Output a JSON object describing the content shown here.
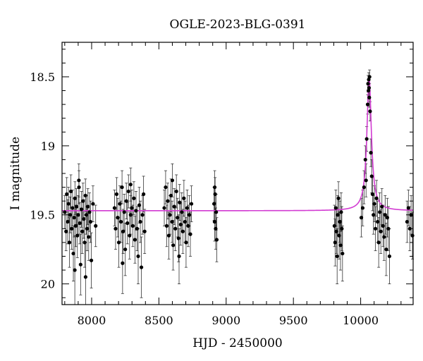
{
  "chart_data": {
    "type": "scatter",
    "title": "OGLE-2023-BLG-0391",
    "xlabel": "HJD - 2450000",
    "ylabel": "I magnitude",
    "xlim": [
      7780,
      10390
    ],
    "ylim": [
      20.15,
      18.25
    ],
    "y_inverted": true,
    "x_ticks": [
      8000,
      8500,
      9000,
      9500,
      10000
    ],
    "y_ticks": [
      18.5,
      19,
      19.5,
      20
    ],
    "grid": false,
    "model_color": "#d23bd2",
    "point_color": "#000000",
    "model": {
      "baseline_mag": 19.47,
      "peak_time": 10063,
      "peak_mag": 18.5,
      "width_days": 16
    },
    "series": [
      {
        "points": [
          [
            7800,
            19.48,
            0.12
          ],
          [
            7810,
            19.62,
            0.14
          ],
          [
            7815,
            19.35,
            0.12
          ],
          [
            7822,
            19.55,
            0.16
          ],
          [
            7828,
            19.42,
            0.12
          ],
          [
            7835,
            19.7,
            0.18
          ],
          [
            7840,
            19.5,
            0.13
          ],
          [
            7846,
            19.33,
            0.12
          ],
          [
            7852,
            19.6,
            0.15
          ],
          [
            7858,
            19.45,
            0.13
          ],
          [
            7864,
            19.78,
            0.2
          ],
          [
            7870,
            19.52,
            0.14
          ],
          [
            7876,
            19.38,
            0.12
          ],
          [
            7882,
            19.58,
            0.15
          ],
          [
            7888,
            19.44,
            0.13
          ],
          [
            7894,
            19.65,
            0.16
          ],
          [
            7900,
            19.5,
            0.14
          ],
          [
            7906,
            19.3,
            0.12
          ],
          [
            7912,
            19.56,
            0.15
          ],
          [
            7918,
            19.86,
            0.22
          ],
          [
            7924,
            19.46,
            0.13
          ],
          [
            7930,
            19.62,
            0.16
          ],
          [
            7936,
            19.4,
            0.13
          ],
          [
            7942,
            19.53,
            0.14
          ],
          [
            7948,
            19.7,
            0.18
          ],
          [
            7954,
            19.36,
            0.12
          ],
          [
            7960,
            19.5,
            0.14
          ],
          [
            7966,
            19.6,
            0.16
          ],
          [
            7972,
            19.44,
            0.13
          ],
          [
            7978,
            19.66,
            0.17
          ],
          [
            7984,
            19.48,
            0.14
          ],
          [
            7992,
            19.55,
            0.15
          ],
          [
            7998,
            19.83,
            0.2
          ],
          [
            8010,
            19.42,
            0.13
          ],
          [
            8030,
            19.58,
            0.15
          ],
          [
            7875,
            19.9,
            0.25
          ],
          [
            7905,
            19.25,
            0.12
          ],
          [
            7955,
            19.95,
            0.25
          ],
          [
            8170,
            19.45,
            0.13
          ],
          [
            8178,
            19.6,
            0.15
          ],
          [
            8186,
            19.35,
            0.12
          ],
          [
            8194,
            19.52,
            0.14
          ],
          [
            8202,
            19.7,
            0.18
          ],
          [
            8210,
            19.42,
            0.13
          ],
          [
            8218,
            19.55,
            0.15
          ],
          [
            8226,
            19.3,
            0.12
          ],
          [
            8234,
            19.62,
            0.16
          ],
          [
            8242,
            19.48,
            0.13
          ],
          [
            8250,
            19.75,
            0.19
          ],
          [
            8258,
            19.4,
            0.13
          ],
          [
            8266,
            19.56,
            0.15
          ],
          [
            8274,
            19.33,
            0.12
          ],
          [
            8282,
            19.65,
            0.17
          ],
          [
            8290,
            19.5,
            0.14
          ],
          [
            8298,
            19.45,
            0.13
          ],
          [
            8306,
            19.58,
            0.15
          ],
          [
            8314,
            19.38,
            0.12
          ],
          [
            8322,
            19.68,
            0.17
          ],
          [
            8330,
            19.47,
            0.14
          ],
          [
            8338,
            19.6,
            0.16
          ],
          [
            8346,
            19.8,
            0.2
          ],
          [
            8354,
            19.43,
            0.13
          ],
          [
            8362,
            19.55,
            0.15
          ],
          [
            8370,
            19.88,
            0.22
          ],
          [
            8378,
            19.5,
            0.14
          ],
          [
            8386,
            19.35,
            0.13
          ],
          [
            8394,
            19.62,
            0.16
          ],
          [
            8290,
            19.28,
            0.12
          ],
          [
            8230,
            19.85,
            0.22
          ],
          [
            8540,
            19.45,
            0.13
          ],
          [
            8550,
            19.3,
            0.12
          ],
          [
            8558,
            19.58,
            0.15
          ],
          [
            8566,
            19.4,
            0.13
          ],
          [
            8574,
            19.65,
            0.17
          ],
          [
            8582,
            19.5,
            0.14
          ],
          [
            8590,
            19.36,
            0.12
          ],
          [
            8598,
            19.55,
            0.15
          ],
          [
            8606,
            19.72,
            0.18
          ],
          [
            8614,
            19.44,
            0.13
          ],
          [
            8622,
            19.6,
            0.16
          ],
          [
            8630,
            19.33,
            0.12
          ],
          [
            8638,
            19.52,
            0.14
          ],
          [
            8646,
            19.67,
            0.17
          ],
          [
            8654,
            19.41,
            0.13
          ],
          [
            8662,
            19.57,
            0.15
          ],
          [
            8670,
            19.48,
            0.14
          ],
          [
            8678,
            19.62,
            0.16
          ],
          [
            8686,
            19.38,
            0.13
          ],
          [
            8694,
            19.55,
            0.15
          ],
          [
            8702,
            19.7,
            0.18
          ],
          [
            8710,
            19.45,
            0.13
          ],
          [
            8718,
            19.58,
            0.15
          ],
          [
            8726,
            19.5,
            0.14
          ],
          [
            8734,
            19.64,
            0.16
          ],
          [
            8742,
            19.42,
            0.13
          ],
          [
            8600,
            19.25,
            0.12
          ],
          [
            8650,
            19.8,
            0.2
          ],
          [
            8910,
            19.42,
            0.12
          ],
          [
            8914,
            19.55,
            0.14
          ],
          [
            8918,
            19.35,
            0.12
          ],
          [
            8922,
            19.6,
            0.15
          ],
          [
            8926,
            19.48,
            0.13
          ],
          [
            8930,
            19.68,
            0.16
          ],
          [
            8915,
            19.3,
            0.12
          ],
          [
            9805,
            19.58,
            0.15
          ],
          [
            9810,
            19.7,
            0.17
          ],
          [
            9815,
            19.45,
            0.13
          ],
          [
            9820,
            19.62,
            0.16
          ],
          [
            9825,
            19.8,
            0.2
          ],
          [
            9830,
            19.5,
            0.14
          ],
          [
            9835,
            19.38,
            0.12
          ],
          [
            9840,
            19.65,
            0.17
          ],
          [
            9845,
            19.55,
            0.15
          ],
          [
            9850,
            19.72,
            0.18
          ],
          [
            9855,
            19.48,
            0.14
          ],
          [
            9860,
            19.6,
            0.16
          ],
          [
            9865,
            19.78,
            0.2
          ],
          [
            10005,
            19.52,
            0.14
          ],
          [
            10015,
            19.45,
            0.13
          ],
          [
            10025,
            19.3,
            0.12
          ],
          [
            10035,
            19.1,
            0.1
          ],
          [
            10040,
            19.25,
            0.12
          ],
          [
            10045,
            18.95,
            0.09
          ],
          [
            10052,
            18.7,
            0.07
          ],
          [
            10055,
            18.55,
            0.06
          ],
          [
            10058,
            18.6,
            0.06
          ],
          [
            10060,
            18.52,
            0.05
          ],
          [
            10062,
            18.58,
            0.06
          ],
          [
            10064,
            18.65,
            0.07
          ],
          [
            10066,
            18.5,
            0.05
          ],
          [
            10070,
            18.75,
            0.07
          ],
          [
            10076,
            19.05,
            0.1
          ],
          [
            10082,
            19.22,
            0.12
          ],
          [
            10088,
            19.35,
            0.12
          ],
          [
            10095,
            19.5,
            0.14
          ],
          [
            10102,
            19.42,
            0.13
          ],
          [
            10110,
            19.6,
            0.16
          ],
          [
            10118,
            19.38,
            0.13
          ],
          [
            10126,
            19.55,
            0.15
          ],
          [
            10134,
            19.7,
            0.18
          ],
          [
            10142,
            19.48,
            0.14
          ],
          [
            10150,
            19.62,
            0.16
          ],
          [
            10158,
            19.44,
            0.13
          ],
          [
            10166,
            19.58,
            0.15
          ],
          [
            10174,
            19.66,
            0.17
          ],
          [
            10182,
            19.5,
            0.14
          ],
          [
            10190,
            19.75,
            0.19
          ],
          [
            10198,
            19.52,
            0.14
          ],
          [
            10206,
            19.6,
            0.16
          ],
          [
            10214,
            19.8,
            0.2
          ],
          [
            10345,
            19.55,
            0.15
          ],
          [
            10355,
            19.45,
            0.13
          ],
          [
            10365,
            19.6,
            0.16
          ],
          [
            10375,
            19.5,
            0.14
          ],
          [
            10385,
            19.65,
            0.17
          ]
        ]
      }
    ]
  }
}
